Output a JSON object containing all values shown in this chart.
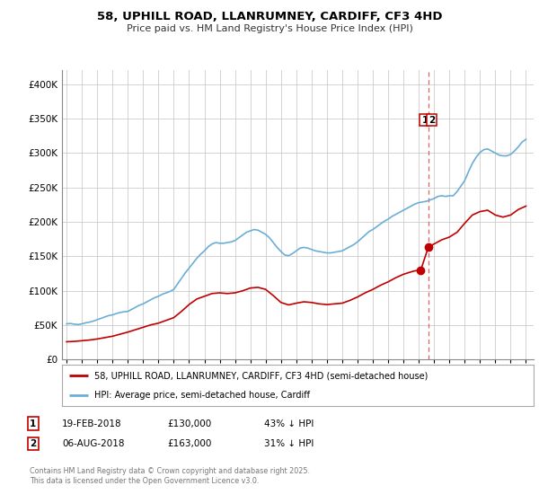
{
  "title_line1": "58, UPHILL ROAD, LLANRUMNEY, CARDIFF, CF3 4HD",
  "title_line2": "Price paid vs. HM Land Registry's House Price Index (HPI)",
  "hpi_label": "HPI: Average price, semi-detached house, Cardiff",
  "price_label": "58, UPHILL ROAD, LLANRUMNEY, CARDIFF, CF3 4HD (semi-detached house)",
  "hpi_color": "#6aaed6",
  "price_color": "#c00000",
  "vline_color": "#e06060",
  "background_color": "#ffffff",
  "grid_color": "#cccccc",
  "ylim": [
    0,
    420000
  ],
  "yticks": [
    0,
    50000,
    100000,
    150000,
    200000,
    250000,
    300000,
    350000,
    400000
  ],
  "xlim_start": 1994.7,
  "xlim_end": 2025.5,
  "xticks": [
    1995,
    1996,
    1997,
    1998,
    1999,
    2000,
    2001,
    2002,
    2003,
    2004,
    2005,
    2006,
    2007,
    2008,
    2009,
    2010,
    2011,
    2012,
    2013,
    2014,
    2015,
    2016,
    2017,
    2018,
    2019,
    2020,
    2021,
    2022,
    2023,
    2024,
    2025
  ],
  "vline_x": 2018.62,
  "transaction1_date": "19-FEB-2018",
  "transaction1_price": "£130,000",
  "transaction1_hpi": "43% ↓ HPI",
  "transaction1_x": 2018.13,
  "transaction1_y": 130000,
  "transaction2_date": "06-AUG-2018",
  "transaction2_price": "£163,000",
  "transaction2_hpi": "31% ↓ HPI",
  "transaction2_x": 2018.62,
  "transaction2_y": 163000,
  "footer_text": "Contains HM Land Registry data © Crown copyright and database right 2025.\nThis data is licensed under the Open Government Licence v3.0.",
  "hpi_data": [
    [
      1995.0,
      52000
    ],
    [
      1995.25,
      52500
    ],
    [
      1995.5,
      51500
    ],
    [
      1995.75,
      51000
    ],
    [
      1996.0,
      52000
    ],
    [
      1996.25,
      53500
    ],
    [
      1996.5,
      54500
    ],
    [
      1996.75,
      56000
    ],
    [
      1997.0,
      58000
    ],
    [
      1997.25,
      60000
    ],
    [
      1997.5,
      62000
    ],
    [
      1997.75,
      64000
    ],
    [
      1998.0,
      65000
    ],
    [
      1998.25,
      67000
    ],
    [
      1998.5,
      68500
    ],
    [
      1998.75,
      69500
    ],
    [
      1999.0,
      70000
    ],
    [
      1999.25,
      73000
    ],
    [
      1999.5,
      76000
    ],
    [
      1999.75,
      79000
    ],
    [
      2000.0,
      81000
    ],
    [
      2000.25,
      84000
    ],
    [
      2000.5,
      87000
    ],
    [
      2000.75,
      90000
    ],
    [
      2001.0,
      92000
    ],
    [
      2001.25,
      95000
    ],
    [
      2001.5,
      97000
    ],
    [
      2001.75,
      99000
    ],
    [
      2002.0,
      102000
    ],
    [
      2002.25,
      110000
    ],
    [
      2002.5,
      118000
    ],
    [
      2002.75,
      126000
    ],
    [
      2003.0,
      133000
    ],
    [
      2003.25,
      140000
    ],
    [
      2003.5,
      147000
    ],
    [
      2003.75,
      153000
    ],
    [
      2004.0,
      158000
    ],
    [
      2004.25,
      164000
    ],
    [
      2004.5,
      168000
    ],
    [
      2004.75,
      170000
    ],
    [
      2005.0,
      169000
    ],
    [
      2005.25,
      169000
    ],
    [
      2005.5,
      170000
    ],
    [
      2005.75,
      171000
    ],
    [
      2006.0,
      173000
    ],
    [
      2006.25,
      177000
    ],
    [
      2006.5,
      181000
    ],
    [
      2006.75,
      185000
    ],
    [
      2007.0,
      187000
    ],
    [
      2007.25,
      189000
    ],
    [
      2007.5,
      188000
    ],
    [
      2007.75,
      185000
    ],
    [
      2008.0,
      182000
    ],
    [
      2008.25,
      177000
    ],
    [
      2008.5,
      170000
    ],
    [
      2008.75,
      163000
    ],
    [
      2009.0,
      157000
    ],
    [
      2009.25,
      152000
    ],
    [
      2009.5,
      151000
    ],
    [
      2009.75,
      154000
    ],
    [
      2010.0,
      158000
    ],
    [
      2010.25,
      162000
    ],
    [
      2010.5,
      163000
    ],
    [
      2010.75,
      162000
    ],
    [
      2011.0,
      160000
    ],
    [
      2011.25,
      158000
    ],
    [
      2011.5,
      157000
    ],
    [
      2011.75,
      156000
    ],
    [
      2012.0,
      155000
    ],
    [
      2012.25,
      155000
    ],
    [
      2012.5,
      156000
    ],
    [
      2012.75,
      157000
    ],
    [
      2013.0,
      158000
    ],
    [
      2013.25,
      161000
    ],
    [
      2013.5,
      164000
    ],
    [
      2013.75,
      167000
    ],
    [
      2014.0,
      171000
    ],
    [
      2014.25,
      176000
    ],
    [
      2014.5,
      181000
    ],
    [
      2014.75,
      186000
    ],
    [
      2015.0,
      189000
    ],
    [
      2015.25,
      193000
    ],
    [
      2015.5,
      197000
    ],
    [
      2015.75,
      201000
    ],
    [
      2016.0,
      204000
    ],
    [
      2016.25,
      208000
    ],
    [
      2016.5,
      211000
    ],
    [
      2016.75,
      214000
    ],
    [
      2017.0,
      217000
    ],
    [
      2017.25,
      220000
    ],
    [
      2017.5,
      223000
    ],
    [
      2017.75,
      226000
    ],
    [
      2018.0,
      228000
    ],
    [
      2018.25,
      229000
    ],
    [
      2018.5,
      230000
    ],
    [
      2018.75,
      232000
    ],
    [
      2019.0,
      234000
    ],
    [
      2019.25,
      237000
    ],
    [
      2019.5,
      238000
    ],
    [
      2019.75,
      237000
    ],
    [
      2020.0,
      238000
    ],
    [
      2020.25,
      238000
    ],
    [
      2020.5,
      244000
    ],
    [
      2020.75,
      252000
    ],
    [
      2021.0,
      260000
    ],
    [
      2021.25,
      273000
    ],
    [
      2021.5,
      285000
    ],
    [
      2021.75,
      294000
    ],
    [
      2022.0,
      301000
    ],
    [
      2022.25,
      305000
    ],
    [
      2022.5,
      306000
    ],
    [
      2022.75,
      303000
    ],
    [
      2023.0,
      300000
    ],
    [
      2023.25,
      297000
    ],
    [
      2023.5,
      296000
    ],
    [
      2023.75,
      296000
    ],
    [
      2024.0,
      298000
    ],
    [
      2024.25,
      303000
    ],
    [
      2024.5,
      309000
    ],
    [
      2024.75,
      316000
    ],
    [
      2025.0,
      320000
    ]
  ],
  "price_data": [
    [
      1995.0,
      26000
    ],
    [
      1995.5,
      26500
    ],
    [
      1996.0,
      27500
    ],
    [
      1996.5,
      28500
    ],
    [
      1997.0,
      30000
    ],
    [
      1997.5,
      32000
    ],
    [
      1998.0,
      34000
    ],
    [
      1998.5,
      37000
    ],
    [
      1999.0,
      40000
    ],
    [
      1999.5,
      43500
    ],
    [
      2000.0,
      47000
    ],
    [
      2000.5,
      50500
    ],
    [
      2001.0,
      53000
    ],
    [
      2001.5,
      57000
    ],
    [
      2002.0,
      61000
    ],
    [
      2002.5,
      70000
    ],
    [
      2003.0,
      80000
    ],
    [
      2003.5,
      88000
    ],
    [
      2004.0,
      92000
    ],
    [
      2004.5,
      96000
    ],
    [
      2005.0,
      97000
    ],
    [
      2005.5,
      96000
    ],
    [
      2006.0,
      97000
    ],
    [
      2006.5,
      100000
    ],
    [
      2007.0,
      104000
    ],
    [
      2007.5,
      105000
    ],
    [
      2008.0,
      102000
    ],
    [
      2008.5,
      93000
    ],
    [
      2009.0,
      83000
    ],
    [
      2009.5,
      79500
    ],
    [
      2010.0,
      82000
    ],
    [
      2010.5,
      84000
    ],
    [
      2011.0,
      83000
    ],
    [
      2011.5,
      81000
    ],
    [
      2012.0,
      80000
    ],
    [
      2012.5,
      81000
    ],
    [
      2013.0,
      82000
    ],
    [
      2013.5,
      86000
    ],
    [
      2014.0,
      91000
    ],
    [
      2014.5,
      97000
    ],
    [
      2015.0,
      102000
    ],
    [
      2015.5,
      108000
    ],
    [
      2016.0,
      113000
    ],
    [
      2016.5,
      119000
    ],
    [
      2017.0,
      124000
    ],
    [
      2017.5,
      127500
    ],
    [
      2017.75,
      129000
    ],
    [
      2018.13,
      130000
    ],
    [
      2018.62,
      163000
    ],
    [
      2018.75,
      165000
    ],
    [
      2019.0,
      168000
    ],
    [
      2019.5,
      174000
    ],
    [
      2020.0,
      178000
    ],
    [
      2020.5,
      185000
    ],
    [
      2021.0,
      198000
    ],
    [
      2021.5,
      210000
    ],
    [
      2022.0,
      215000
    ],
    [
      2022.5,
      217000
    ],
    [
      2023.0,
      210000
    ],
    [
      2023.5,
      207000
    ],
    [
      2024.0,
      210000
    ],
    [
      2024.5,
      218000
    ],
    [
      2025.0,
      223000
    ]
  ]
}
